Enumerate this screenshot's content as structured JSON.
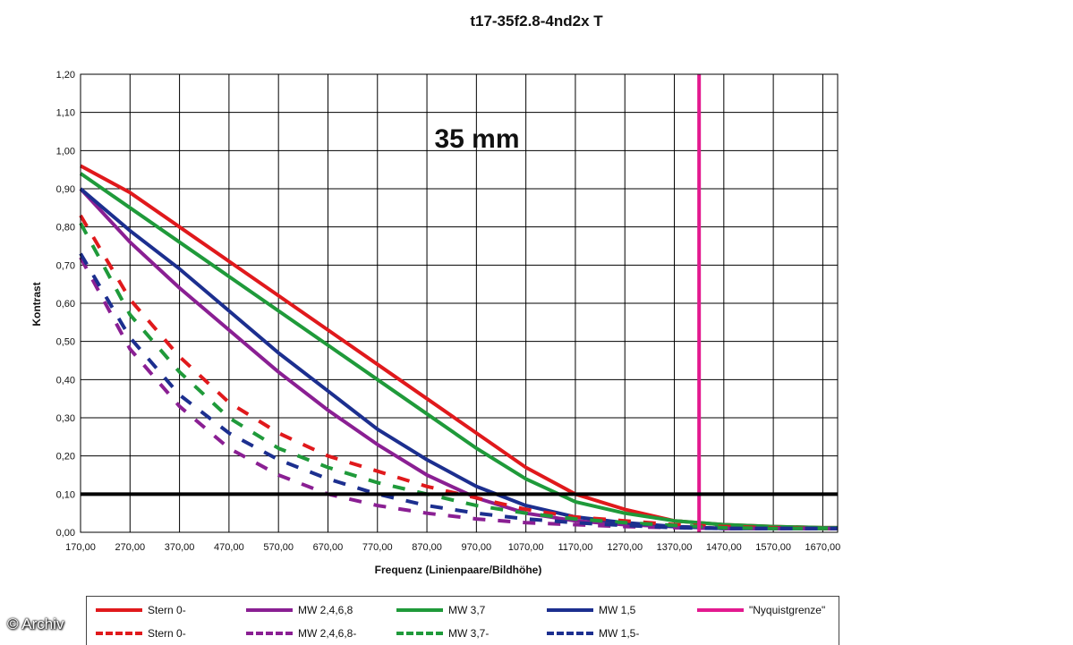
{
  "title": "t17-35f2.8-4nd2x T",
  "watermark": "© Archiv",
  "chart_data": {
    "type": "line",
    "title": "t17-35f2.8-4nd2x T",
    "xlabel": "Frequenz (Linienpaare/Bildhöhe)",
    "ylabel": "Kontrast",
    "annotation": "35 mm",
    "xlim": [
      170,
      1700
    ],
    "ylim": [
      0,
      1.2
    ],
    "x_ticks": [
      "170,00",
      "270,00",
      "370,00",
      "470,00",
      "570,00",
      "670,00",
      "770,00",
      "870,00",
      "970,00",
      "1070,00",
      "1170,00",
      "1270,00",
      "1370,00",
      "1470,00",
      "1570,00",
      "1670,00"
    ],
    "y_ticks": [
      "0,00",
      "0,10",
      "0,20",
      "0,30",
      "0,40",
      "0,50",
      "0,60",
      "0,70",
      "0,80",
      "0,90",
      "1,00",
      "1,10",
      "1,20"
    ],
    "x": [
      170,
      270,
      370,
      470,
      570,
      670,
      770,
      870,
      970,
      1070,
      1170,
      1270,
      1370,
      1470,
      1570,
      1670,
      1700
    ],
    "series": [
      {
        "name": "Stern 0-",
        "color": "#e0191c",
        "style": "solid",
        "values": [
          0.96,
          0.89,
          0.8,
          0.71,
          0.62,
          0.53,
          0.44,
          0.35,
          0.26,
          0.17,
          0.1,
          0.06,
          0.03,
          0.02,
          0.015,
          0.012,
          0.012
        ]
      },
      {
        "name": "MW 2,4,6,8",
        "color": "#8a1f93",
        "style": "solid",
        "values": [
          0.9,
          0.76,
          0.64,
          0.53,
          0.42,
          0.32,
          0.23,
          0.15,
          0.09,
          0.05,
          0.03,
          0.02,
          0.015,
          0.01,
          0.01,
          0.01,
          0.01
        ]
      },
      {
        "name": "MW 3,7",
        "color": "#1f9a3a",
        "style": "solid",
        "values": [
          0.94,
          0.85,
          0.76,
          0.67,
          0.58,
          0.49,
          0.4,
          0.31,
          0.22,
          0.14,
          0.08,
          0.05,
          0.03,
          0.02,
          0.015,
          0.012,
          0.012
        ]
      },
      {
        "name": "MW 1,5",
        "color": "#1c2f8f",
        "style": "solid",
        "values": [
          0.9,
          0.79,
          0.69,
          0.58,
          0.47,
          0.37,
          0.27,
          0.19,
          0.12,
          0.07,
          0.04,
          0.025,
          0.015,
          0.01,
          0.01,
          0.01,
          0.01
        ]
      },
      {
        "name": "Stern 0-",
        "color": "#e0191c",
        "style": "dashed",
        "values": [
          0.83,
          0.61,
          0.46,
          0.34,
          0.26,
          0.2,
          0.16,
          0.12,
          0.09,
          0.06,
          0.04,
          0.03,
          0.02,
          0.015,
          0.012,
          0.01,
          0.01
        ]
      },
      {
        "name": "MW 2,4,6,8-",
        "color": "#8a1f93",
        "style": "dashed",
        "values": [
          0.72,
          0.48,
          0.33,
          0.22,
          0.15,
          0.1,
          0.07,
          0.05,
          0.035,
          0.025,
          0.02,
          0.015,
          0.012,
          0.01,
          0.01,
          0.01,
          0.01
        ]
      },
      {
        "name": "MW 3,7-",
        "color": "#1f9a3a",
        "style": "dashed",
        "values": [
          0.81,
          0.57,
          0.42,
          0.3,
          0.22,
          0.17,
          0.13,
          0.1,
          0.07,
          0.05,
          0.035,
          0.025,
          0.018,
          0.012,
          0.01,
          0.01,
          0.01
        ]
      },
      {
        "name": "MW 1,5-",
        "color": "#1c2f8f",
        "style": "dashed",
        "values": [
          0.73,
          0.51,
          0.36,
          0.26,
          0.19,
          0.14,
          0.1,
          0.07,
          0.05,
          0.035,
          0.025,
          0.018,
          0.012,
          0.01,
          0.01,
          0.01,
          0.01
        ]
      }
    ],
    "reference_lines": [
      {
        "name": "\"Nyquistgrenze\"",
        "orientation": "vertical",
        "value": 1420,
        "color": "#e3198f"
      },
      {
        "orientation": "horizontal",
        "value": 0.1,
        "color": "#000000"
      }
    ],
    "grid": true,
    "legend_position": "bottom"
  }
}
